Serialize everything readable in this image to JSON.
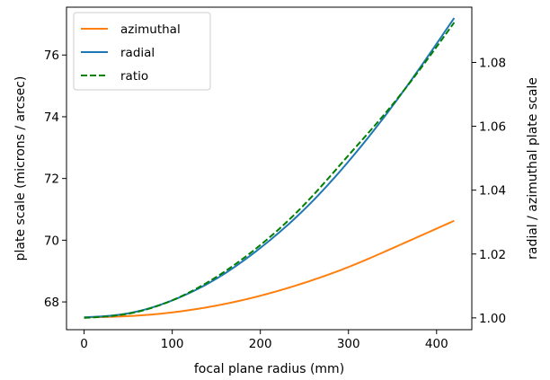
{
  "chart_data": {
    "type": "line",
    "xlabel": "focal plane radius (mm)",
    "ylabel": "plate scale (microns / arcsec)",
    "y2label": "radial / azimuthal plate scale",
    "xlim": [
      -20,
      440
    ],
    "ylim": [
      67.1,
      77.55
    ],
    "y2lim": [
      0.9963,
      1.0973
    ],
    "x_ticks": [
      0,
      100,
      200,
      300,
      400
    ],
    "y_ticks": [
      68,
      70,
      72,
      74,
      76
    ],
    "y2_ticks": [
      1.0,
      1.02,
      1.04,
      1.06,
      1.08
    ],
    "grid": false,
    "legend_position": "top-left",
    "series": [
      {
        "name": "azimuthal",
        "color": "#ff7f0e",
        "dash": "solid",
        "axis": "left",
        "x": [
          0,
          50,
          100,
          150,
          200,
          250,
          300,
          350,
          420
        ],
        "y": [
          67.5,
          67.54,
          67.66,
          67.88,
          68.2,
          68.62,
          69.13,
          69.74,
          70.63
        ]
      },
      {
        "name": "radial",
        "color": "#1f77b4",
        "dash": "solid",
        "axis": "left",
        "x": [
          0,
          50,
          100,
          150,
          200,
          250,
          300,
          350,
          420
        ],
        "y": [
          67.5,
          67.63,
          68.05,
          68.75,
          69.75,
          71.0,
          72.55,
          74.35,
          77.2
        ]
      },
      {
        "name": "ratio",
        "color": "#008000",
        "dash": "dashed",
        "axis": "right",
        "x": [
          0,
          50,
          100,
          150,
          200,
          250,
          300,
          350,
          420
        ],
        "y": [
          1.0,
          1.0013,
          1.0055,
          1.0128,
          1.0228,
          1.0355,
          1.0509,
          1.0668,
          1.0925
        ]
      }
    ]
  }
}
